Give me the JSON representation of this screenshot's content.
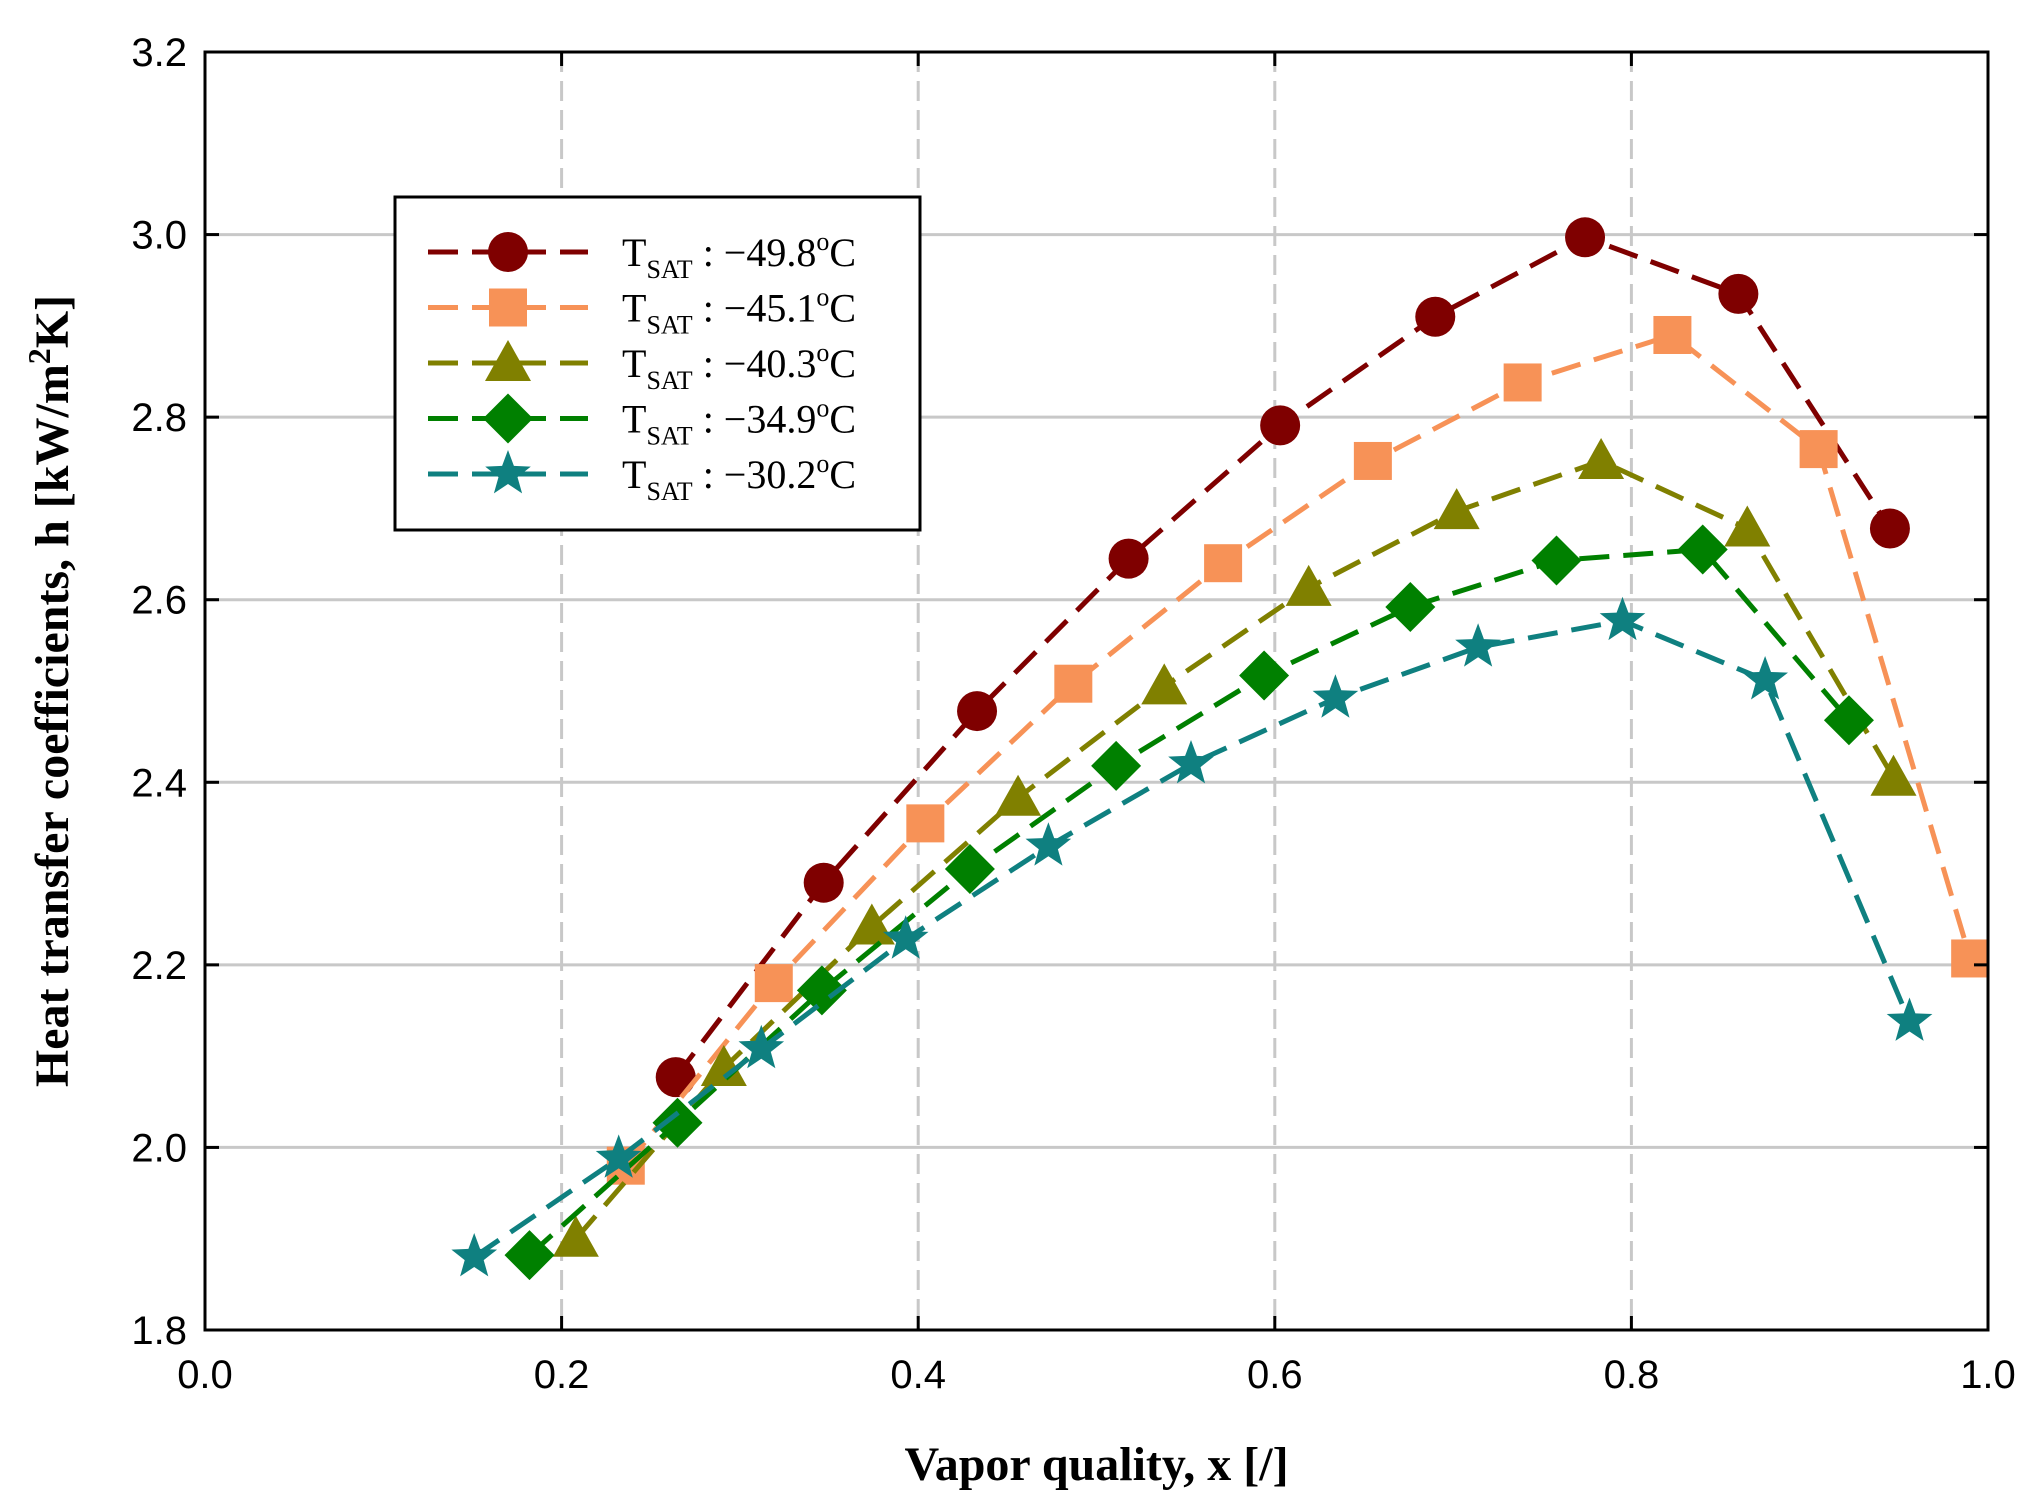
{
  "chart_data": {
    "type": "line",
    "title": "",
    "xlabel": "Vapor quality, x [/]",
    "ylabel": "Heat transfer coefficients, h [kW/m²K]",
    "ylabel_parts": {
      "main": "Heat transfer coefficients, h [kW/m",
      "sup": "2",
      "tail": "K]"
    },
    "xlim": [
      0.0,
      1.0
    ],
    "ylim": [
      1.8,
      3.2
    ],
    "xticks": [
      0.0,
      0.2,
      0.4,
      0.6,
      0.8,
      1.0
    ],
    "xtick_labels": [
      "0.0",
      "0.2",
      "0.4",
      "0.6",
      "0.8",
      "1.0"
    ],
    "yticks": [
      1.8,
      2.0,
      2.2,
      2.4,
      2.6,
      2.8,
      3.0,
      3.2
    ],
    "ytick_labels": [
      "1.8",
      "2.0",
      "2.2",
      "2.4",
      "2.6",
      "2.8",
      "3.0",
      "3.2"
    ],
    "grid": true,
    "legend_position": "top-left",
    "series": [
      {
        "name": "T_SAT : −49.8°C",
        "label_main": "T",
        "label_sub": "SAT",
        "label_value": " : −49.8",
        "label_deg": "o",
        "label_unit": "C",
        "color": "#7f0000",
        "marker": "circle",
        "x": [
          0.264,
          0.347,
          0.433,
          0.518,
          0.603,
          0.69,
          0.774,
          0.86,
          0.945
        ],
        "y": [
          2.077,
          2.29,
          2.478,
          2.645,
          2.791,
          2.91,
          2.997,
          2.935,
          2.678
        ]
      },
      {
        "name": "T_SAT : −45.1°C",
        "label_main": "T",
        "label_sub": "SAT",
        "label_value": " : −45.1",
        "label_deg": "o",
        "label_unit": "C",
        "color": "#f79257",
        "marker": "square",
        "x": [
          0.236,
          0.319,
          0.404,
          0.487,
          0.571,
          0.655,
          0.739,
          0.823,
          0.905,
          0.99
        ],
        "y": [
          1.98,
          2.18,
          2.355,
          2.508,
          2.64,
          2.752,
          2.838,
          2.89,
          2.765,
          2.207
        ]
      },
      {
        "name": "T_SAT : −40.3°C",
        "label_main": "T",
        "label_sub": "SAT",
        "label_value": " : −40.3",
        "label_deg": "o",
        "label_unit": "C",
        "color": "#808000",
        "marker": "triangle",
        "x": [
          0.208,
          0.291,
          0.374,
          0.456,
          0.538,
          0.619,
          0.702,
          0.783,
          0.865,
          0.947
        ],
        "y": [
          1.9,
          2.087,
          2.242,
          2.383,
          2.505,
          2.613,
          2.697,
          2.752,
          2.678,
          2.405
        ]
      },
      {
        "name": "T_SAT : −34.9°C",
        "label_main": "T",
        "label_sub": "SAT",
        "label_value": " : −34.9",
        "label_deg": "o",
        "label_unit": "C",
        "color": "#008000",
        "marker": "diamond",
        "x": [
          0.182,
          0.265,
          0.346,
          0.429,
          0.511,
          0.594,
          0.676,
          0.758,
          0.84,
          0.922
        ],
        "y": [
          1.882,
          2.027,
          2.172,
          2.305,
          2.418,
          2.517,
          2.592,
          2.643,
          2.655,
          2.468
        ]
      },
      {
        "name": "T_SAT : −30.2°C",
        "label_main": "T",
        "label_sub": "SAT",
        "label_value": " : −30.2",
        "label_deg": "o",
        "label_unit": "C",
        "color": "#0f8080",
        "marker": "star",
        "x": [
          0.151,
          0.232,
          0.312,
          0.393,
          0.473,
          0.553,
          0.634,
          0.714,
          0.795,
          0.875,
          0.956
        ],
        "y": [
          1.88,
          1.988,
          2.108,
          2.228,
          2.33,
          2.42,
          2.492,
          2.548,
          2.577,
          2.512,
          2.138
        ]
      }
    ]
  }
}
